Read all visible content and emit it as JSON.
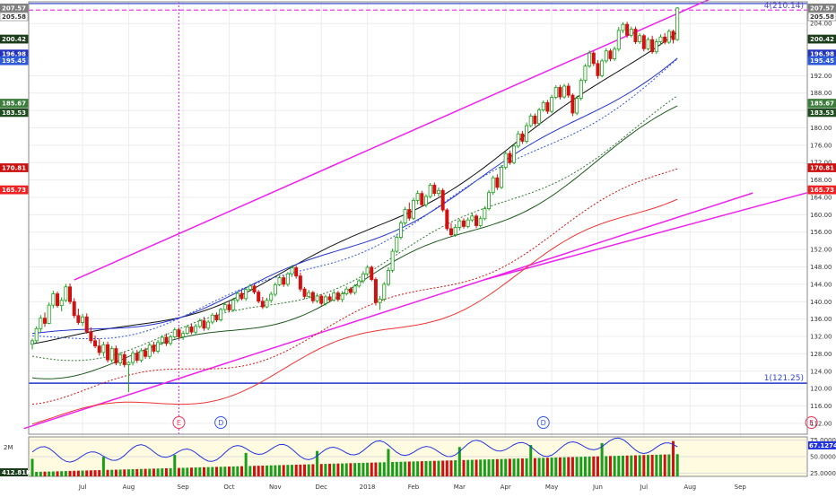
{
  "chart_data": {
    "type": "candlestick",
    "price_pane": {
      "ylim": [
        109.5,
        209.0
      ],
      "y_ticks": [
        "112.00",
        "116.00",
        "120.00",
        "124.00",
        "128.00",
        "132.00",
        "136.00",
        "140.00",
        "144.00",
        "148.00",
        "152.00",
        "156.00",
        "160.00",
        "164.00",
        "168.00",
        "172.00",
        "176.00",
        "180.00",
        "184.00",
        "188.00",
        "192.00",
        "204.00"
      ],
      "right_tags": [
        {
          "label": "207.57",
          "value": 207.57,
          "color": "#7f7f7f"
        },
        {
          "label": "205.58",
          "value": 205.58,
          "color": "#ffffff"
        },
        {
          "label": "200.42",
          "value": 200.42,
          "color": "#1b3d1b"
        },
        {
          "label": "196.98",
          "value": 196.98,
          "color": "#2233bb"
        },
        {
          "label": "195.45",
          "value": 195.45,
          "color": "#2c5ad8"
        },
        {
          "label": "185.67",
          "value": 185.67,
          "color": "#3b7d3b"
        },
        {
          "label": "183.53",
          "value": 183.53,
          "color": "#1e4d1e"
        },
        {
          "label": "170.81",
          "value": 170.81,
          "color": "#cc1111"
        },
        {
          "label": "165.73",
          "value": 165.73,
          "color": "#ee2222"
        }
      ],
      "left_tags": [
        {
          "label": "207.57",
          "value": 207.57,
          "color": "#7f7f7f"
        },
        {
          "label": "205.58",
          "value": 205.58,
          "color": "#ffffff"
        },
        {
          "label": "200.42",
          "value": 200.42,
          "color": "#1b3d1b"
        },
        {
          "label": "196.98",
          "value": 196.98,
          "color": "#2233bb"
        },
        {
          "label": "195.45",
          "value": 195.45,
          "color": "#2c5ad8"
        },
        {
          "label": "185.67",
          "value": 185.67,
          "color": "#3b7d3b"
        },
        {
          "label": "183.53",
          "value": 183.53,
          "color": "#1e4d1e"
        },
        {
          "label": "170.81",
          "value": 170.81,
          "color": "#cc1111"
        },
        {
          "label": "165.73",
          "value": 165.73,
          "color": "#ee2222"
        }
      ],
      "candles": [
        [
          130.2,
          131.5,
          129.0,
          131.0
        ],
        [
          131.0,
          134.3,
          130.5,
          133.8
        ],
        [
          133.8,
          136.9,
          133.0,
          136.2
        ],
        [
          136.2,
          137.5,
          134.2,
          135.0
        ],
        [
          135.0,
          139.8,
          134.8,
          139.2
        ],
        [
          139.2,
          142.5,
          138.5,
          141.8
        ],
        [
          141.8,
          142.3,
          138.6,
          139.1
        ],
        [
          139.1,
          141.0,
          137.8,
          140.3
        ],
        [
          140.3,
          144.1,
          139.9,
          143.4
        ],
        [
          143.4,
          144.2,
          139.4,
          140.0
        ],
        [
          140.0,
          140.8,
          136.2,
          136.8
        ],
        [
          136.8,
          138.4,
          134.7,
          135.2
        ],
        [
          135.2,
          137.2,
          134.4,
          136.5
        ],
        [
          136.5,
          137.3,
          132.6,
          133.1
        ],
        [
          133.1,
          134.1,
          130.4,
          131.0
        ],
        [
          131.0,
          132.2,
          129.3,
          129.8
        ],
        [
          129.8,
          131.5,
          127.6,
          128.3
        ],
        [
          128.3,
          130.8,
          127.4,
          130.1
        ],
        [
          130.1,
          130.8,
          126.0,
          126.6
        ],
        [
          126.6,
          129.8,
          126.0,
          129.2
        ],
        [
          129.2,
          129.9,
          125.4,
          125.9
        ],
        [
          125.9,
          128.4,
          125.2,
          127.8
        ],
        [
          127.8,
          128.6,
          124.9,
          125.5
        ],
        [
          125.5,
          126.3,
          119.2,
          126.0
        ],
        [
          126.0,
          128.8,
          125.3,
          128.1
        ],
        [
          128.1,
          128.9,
          125.9,
          126.5
        ],
        [
          126.5,
          129.3,
          126.0,
          128.7
        ],
        [
          128.7,
          129.4,
          126.8,
          127.4
        ],
        [
          127.4,
          130.6,
          126.8,
          130.0
        ],
        [
          130.0,
          130.8,
          128.0,
          128.6
        ],
        [
          128.6,
          131.2,
          128.1,
          130.6
        ],
        [
          130.6,
          132.3,
          130.0,
          131.8
        ],
        [
          131.8,
          132.7,
          129.8,
          130.4
        ],
        [
          130.4,
          132.4,
          129.9,
          131.9
        ],
        [
          131.9,
          134.0,
          131.5,
          133.5
        ],
        [
          133.5,
          134.1,
          131.4,
          131.9
        ],
        [
          131.9,
          133.3,
          131.2,
          132.7
        ],
        [
          132.7,
          134.6,
          132.4,
          134.2
        ],
        [
          134.2,
          134.9,
          132.5,
          133.0
        ],
        [
          133.0,
          134.9,
          132.4,
          134.3
        ],
        [
          134.3,
          136.1,
          133.9,
          135.6
        ],
        [
          135.6,
          136.5,
          133.3,
          133.9
        ],
        [
          133.9,
          135.8,
          133.4,
          135.3
        ],
        [
          135.3,
          137.4,
          134.8,
          136.9
        ],
        [
          136.9,
          137.5,
          135.3,
          135.8
        ],
        [
          135.8,
          138.6,
          135.4,
          138.2
        ],
        [
          138.2,
          139.9,
          137.6,
          139.3
        ],
        [
          139.3,
          140.0,
          137.6,
          138.1
        ],
        [
          138.1,
          140.9,
          137.7,
          140.4
        ],
        [
          140.4,
          142.4,
          139.8,
          141.9
        ],
        [
          141.9,
          142.6,
          140.3,
          140.7
        ],
        [
          140.7,
          143.2,
          140.2,
          142.8
        ],
        [
          142.8,
          144.1,
          142.3,
          143.6
        ],
        [
          143.6,
          144.2,
          141.7,
          142.2
        ],
        [
          142.2,
          142.7,
          139.6,
          140.1
        ],
        [
          140.1,
          141.1,
          138.3,
          138.8
        ],
        [
          138.8,
          140.9,
          138.5,
          140.3
        ],
        [
          140.3,
          142.3,
          139.7,
          141.7
        ],
        [
          141.7,
          144.4,
          141.2,
          143.9
        ],
        [
          143.9,
          146.0,
          143.6,
          145.5
        ],
        [
          145.5,
          146.1,
          143.4,
          144.0
        ],
        [
          144.0,
          146.8,
          143.5,
          146.4
        ],
        [
          146.4,
          148.4,
          145.7,
          147.8
        ],
        [
          147.8,
          148.3,
          145.3,
          145.9
        ],
        [
          145.9,
          146.7,
          142.3,
          142.9
        ],
        [
          142.9,
          143.4,
          140.6,
          141.2
        ],
        [
          141.2,
          142.7,
          140.8,
          142.1
        ],
        [
          142.1,
          142.5,
          139.6,
          140.2
        ],
        [
          140.2,
          141.9,
          139.7,
          141.3
        ],
        [
          141.3,
          141.7,
          139.1,
          139.6
        ],
        [
          139.6,
          141.6,
          139.1,
          141.1
        ],
        [
          141.1,
          141.8,
          139.8,
          140.4
        ],
        [
          140.4,
          142.5,
          140.0,
          142.0
        ],
        [
          142.0,
          142.5,
          140.0,
          140.5
        ],
        [
          140.5,
          142.4,
          139.9,
          141.8
        ],
        [
          141.8,
          143.5,
          141.4,
          142.9
        ],
        [
          142.9,
          143.4,
          141.6,
          142.1
        ],
        [
          142.1,
          144.0,
          141.6,
          143.6
        ],
        [
          143.6,
          145.2,
          143.2,
          144.8
        ],
        [
          144.8,
          147.0,
          144.2,
          146.4
        ],
        [
          146.4,
          148.4,
          145.8,
          147.9
        ],
        [
          147.9,
          148.3,
          144.7,
          145.1
        ],
        [
          145.1,
          145.6,
          139.1,
          139.8
        ],
        [
          139.8,
          141.3,
          138.1,
          140.6
        ],
        [
          140.6,
          144.5,
          140.1,
          144.0
        ],
        [
          144.0,
          147.9,
          143.6,
          147.2
        ],
        [
          147.2,
          152.2,
          146.7,
          151.6
        ],
        [
          151.6,
          155.3,
          151.2,
          154.8
        ],
        [
          154.8,
          158.7,
          154.3,
          158.1
        ],
        [
          158.1,
          161.8,
          157.6,
          161.2
        ],
        [
          161.2,
          162.8,
          158.6,
          159.2
        ],
        [
          159.2,
          163.9,
          158.8,
          163.3
        ],
        [
          163.3,
          165.6,
          162.4,
          164.9
        ],
        [
          164.9,
          165.5,
          161.8,
          162.3
        ],
        [
          162.3,
          164.7,
          161.7,
          164.2
        ],
        [
          164.2,
          167.3,
          163.8,
          166.8
        ],
        [
          166.8,
          167.4,
          164.3,
          164.9
        ],
        [
          164.9,
          166.3,
          164.2,
          165.6
        ],
        [
          165.6,
          166.1,
          160.6,
          161.1
        ],
        [
          161.1,
          161.5,
          156.3,
          156.8
        ],
        [
          156.8,
          158.1,
          155.0,
          155.4
        ],
        [
          155.4,
          157.8,
          154.9,
          157.1
        ],
        [
          157.1,
          159.0,
          156.4,
          158.6
        ],
        [
          158.6,
          159.2,
          156.8,
          157.3
        ],
        [
          157.3,
          159.4,
          156.9,
          158.8
        ],
        [
          158.8,
          160.4,
          158.3,
          159.7
        ],
        [
          159.7,
          160.2,
          156.9,
          157.5
        ],
        [
          157.5,
          159.7,
          157.1,
          159.1
        ],
        [
          159.1,
          162.0,
          158.7,
          161.4
        ],
        [
          161.4,
          165.7,
          161.0,
          165.1
        ],
        [
          165.1,
          169.0,
          164.6,
          168.5
        ],
        [
          168.5,
          169.3,
          165.7,
          166.3
        ],
        [
          166.3,
          171.4,
          165.9,
          170.9
        ],
        [
          170.9,
          174.7,
          170.4,
          174.1
        ],
        [
          174.1,
          174.8,
          171.5,
          172.0
        ],
        [
          172.0,
          176.4,
          171.6,
          175.8
        ],
        [
          175.8,
          179.3,
          175.3,
          178.6
        ],
        [
          178.6,
          179.3,
          176.3,
          176.9
        ],
        [
          176.9,
          181.2,
          176.4,
          180.5
        ],
        [
          180.5,
          183.3,
          180.1,
          182.7
        ],
        [
          182.7,
          183.3,
          180.4,
          181.0
        ],
        [
          181.0,
          184.6,
          180.5,
          184.1
        ],
        [
          184.1,
          186.3,
          183.7,
          185.8
        ],
        [
          185.8,
          186.4,
          183.2,
          183.8
        ],
        [
          183.8,
          187.6,
          183.3,
          187.0
        ],
        [
          187.0,
          189.8,
          186.6,
          189.3
        ],
        [
          189.3,
          189.9,
          186.5,
          187.1
        ],
        [
          187.1,
          190.1,
          186.7,
          189.6
        ],
        [
          189.6,
          190.3,
          186.9,
          187.5
        ],
        [
          187.5,
          187.9,
          182.7,
          183.4
        ],
        [
          183.4,
          187.4,
          182.9,
          186.8
        ],
        [
          186.8,
          191.4,
          186.3,
          190.9
        ],
        [
          190.9,
          194.7,
          190.3,
          194.2
        ],
        [
          194.2,
          197.8,
          193.8,
          197.2
        ],
        [
          197.2,
          197.7,
          194.2,
          194.8
        ],
        [
          194.8,
          195.6,
          191.3,
          192.0
        ],
        [
          192.0,
          195.9,
          191.6,
          195.4
        ],
        [
          195.4,
          198.3,
          194.9,
          197.7
        ],
        [
          197.7,
          198.2,
          195.3,
          195.9
        ],
        [
          195.9,
          198.7,
          195.4,
          198.1
        ],
        [
          198.1,
          203.2,
          197.6,
          202.4
        ],
        [
          202.4,
          204.3,
          201.8,
          203.8
        ],
        [
          203.8,
          204.4,
          200.7,
          201.3
        ],
        [
          201.3,
          203.3,
          200.8,
          202.7
        ],
        [
          202.7,
          203.3,
          199.3,
          199.8
        ],
        [
          199.8,
          201.8,
          199.3,
          201.2
        ],
        [
          201.2,
          201.6,
          197.6,
          198.2
        ],
        [
          198.2,
          200.8,
          197.8,
          200.3
        ],
        [
          200.3,
          201.2,
          197.0,
          197.5
        ],
        [
          197.5,
          200.5,
          197.0,
          199.8
        ],
        [
          199.8,
          201.5,
          199.0,
          200.9
        ],
        [
          200.9,
          201.8,
          199.2,
          199.7
        ],
        [
          199.7,
          202.7,
          199.3,
          202.2
        ],
        [
          202.2,
          202.6,
          199.4,
          200.3
        ],
        [
          200.3,
          207.8,
          200.0,
          207.57
        ]
      ],
      "moving_averages": [
        {
          "name": "ma-black",
          "color": "#111111",
          "style": "solid",
          "start": 130.3,
          "end": 203.2
        },
        {
          "name": "ma-blue",
          "color": "#2233cc",
          "style": "solid",
          "start": 131.5,
          "end": 196.98
        },
        {
          "name": "ma-blue-dotted",
          "color": "#3355dd",
          "style": "dotted",
          "start": 130.7,
          "end": 195.45
        },
        {
          "name": "ma-green-dotted",
          "color": "#337733",
          "style": "dotted",
          "start": 127.2,
          "end": 185.67
        },
        {
          "name": "ma-green",
          "color": "#1e5a1e",
          "style": "solid",
          "start": 124.0,
          "end": 183.53
        },
        {
          "name": "ma-red-dotted",
          "color": "#cc1111",
          "style": "dotted",
          "start": 118.5,
          "end": 170.81
        },
        {
          "name": "ma-red",
          "color": "#ee3333",
          "style": "solid",
          "start": 112.5,
          "end": 165.73
        }
      ],
      "annotations": {
        "hline_low_label": "1(121.25)",
        "hline_low_value": 121.25,
        "hline_top_value": 208.6,
        "hline_top_dashed_value": 207.1,
        "channel_upper": [
          {
            "bar": 10,
            "value": 145.0
          },
          {
            "bar": 158,
            "value": 208.0
          }
        ],
        "channel_upper_label": "4(210.14)",
        "trend_lower": [
          {
            "bar": -2,
            "value": 110.8
          },
          {
            "bar": 172,
            "value": 165.0
          }
        ],
        "event_markers": [
          {
            "bar": 35,
            "label": "E",
            "color": "#ee3355"
          },
          {
            "bar": 45,
            "label": "D",
            "color": "#3355ee"
          },
          {
            "bar": 122,
            "label": "D",
            "color": "#3355ee"
          },
          {
            "bar": 186,
            "label": "E",
            "color": "#ee3355"
          }
        ],
        "vlines": [
          35,
          196
        ]
      }
    },
    "x_labels": [
      {
        "label": "Jul",
        "bar": 12
      },
      {
        "label": "Aug",
        "bar": 23
      },
      {
        "label": "Sep",
        "bar": 36
      },
      {
        "label": "Oct",
        "bar": 47
      },
      {
        "label": "Nov",
        "bar": 58
      },
      {
        "label": "Dec",
        "bar": 69
      },
      {
        "label": "2018",
        "bar": 80
      },
      {
        "label": "Feb",
        "bar": 91
      },
      {
        "label": "Mar",
        "bar": 102
      },
      {
        "label": "Apr",
        "bar": 113
      },
      {
        "label": "May",
        "bar": 124
      },
      {
        "label": "Jun",
        "bar": 135
      },
      {
        "label": "Jul",
        "bar": 146
      },
      {
        "label": "Aug",
        "bar": 157
      },
      {
        "label": "Sep",
        "bar": 169
      }
    ],
    "volume_pane": {
      "ylim": [
        0,
        2700000
      ],
      "left_ticks": [
        "2M"
      ],
      "left_tag": "412.81K",
      "right_ticks": [
        "75.0000",
        "50.0000",
        "25.0000"
      ],
      "rsi_tag": "67.1274",
      "rsi_ylim": [
        20,
        80
      ],
      "rsi_start": 52,
      "rsi_end": 67.1274
    }
  }
}
